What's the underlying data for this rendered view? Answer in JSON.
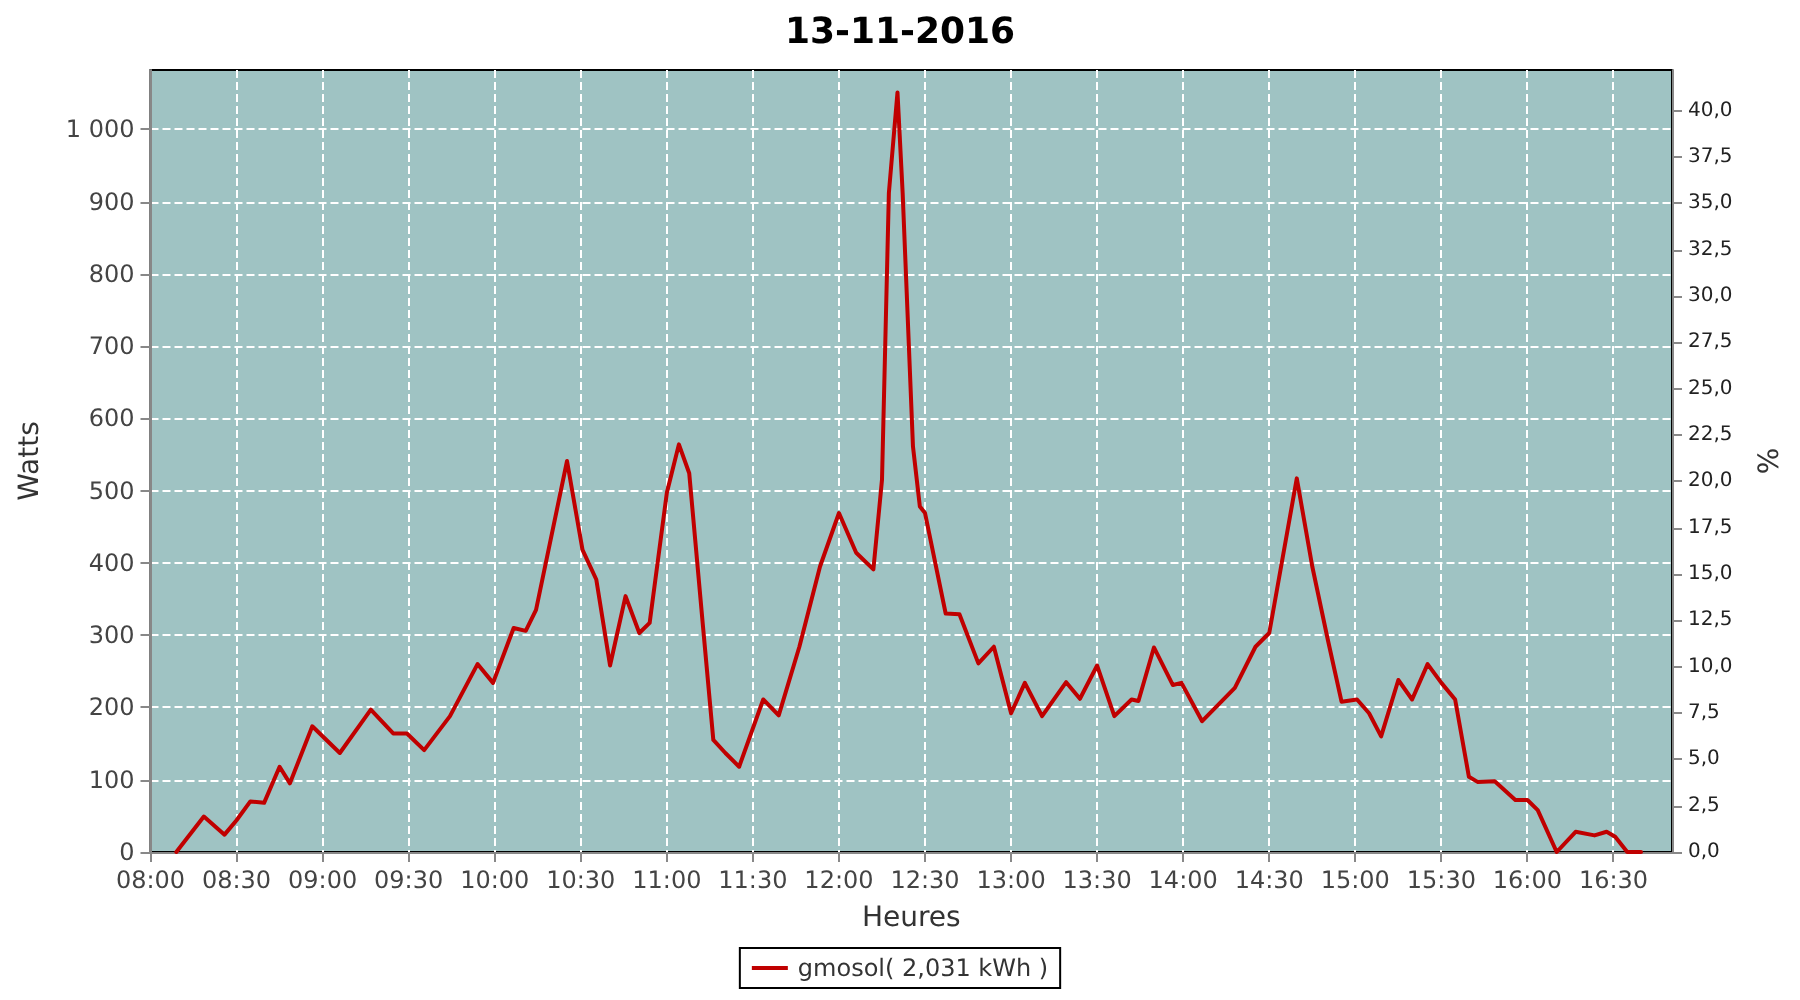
{
  "chart_data": {
    "type": "line",
    "title": "13-11-2016",
    "xlabel": "Heures",
    "ylabel": "Watts",
    "y2label": "%",
    "xlim": [
      8,
      16.84
    ],
    "xticks": [
      {
        "value": 8,
        "label": "08:00"
      },
      {
        "value": 8.5,
        "label": "08:30"
      },
      {
        "value": 9,
        "label": "09:00"
      },
      {
        "value": 9.5,
        "label": "09:30"
      },
      {
        "value": 10,
        "label": "10:00"
      },
      {
        "value": 10.5,
        "label": "10:30"
      },
      {
        "value": 11,
        "label": "11:00"
      },
      {
        "value": 11.5,
        "label": "11:30"
      },
      {
        "value": 12,
        "label": "12:00"
      },
      {
        "value": 12.5,
        "label": "12:30"
      },
      {
        "value": 13,
        "label": "13:00"
      },
      {
        "value": 13.5,
        "label": "13:30"
      },
      {
        "value": 14,
        "label": "14:00"
      },
      {
        "value": 14.5,
        "label": "14:30"
      },
      {
        "value": 15,
        "label": "15:00"
      },
      {
        "value": 15.5,
        "label": "15:30"
      },
      {
        "value": 16,
        "label": "16:00"
      },
      {
        "value": 16.5,
        "label": "16:30"
      }
    ],
    "ylim": [
      0,
      1082
    ],
    "yticks": [
      0,
      100,
      200,
      300,
      400,
      500,
      600,
      700,
      800,
      900,
      {
        "value": 1000,
        "label": "1 000"
      }
    ],
    "y2lim": [
      0,
      42.2
    ],
    "y2ticks": [
      {
        "value": 0,
        "label": "0,0"
      },
      {
        "value": 2.5,
        "label": "2,5"
      },
      {
        "value": 5,
        "label": "5,0"
      },
      {
        "value": 7.5,
        "label": "7,5"
      },
      {
        "value": 10,
        "label": "10,0"
      },
      {
        "value": 12.5,
        "label": "12,5"
      },
      {
        "value": 15,
        "label": "15,0"
      },
      {
        "value": 17.5,
        "label": "17,5"
      },
      {
        "value": 20,
        "label": "20,0"
      },
      {
        "value": 22.5,
        "label": "22,5"
      },
      {
        "value": 25,
        "label": "25,0"
      },
      {
        "value": 27.5,
        "label": "27,5"
      },
      {
        "value": 30,
        "label": "30,0"
      },
      {
        "value": 32.5,
        "label": "32,5"
      },
      {
        "value": 35,
        "label": "35,0"
      },
      {
        "value": 37.5,
        "label": "37,5"
      },
      {
        "value": 40,
        "label": "40,0"
      }
    ],
    "grid": true,
    "legend": "bottom",
    "marker": "none",
    "line_style": "solid",
    "series": [
      {
        "name": "gmosol( 2,031 kWh )",
        "color": "#c00000",
        "x": [
          8.15,
          8.31,
          8.43,
          8.5,
          8.58,
          8.66,
          8.75,
          8.81,
          8.94,
          9.1,
          9.28,
          9.41,
          9.49,
          9.59,
          9.74,
          9.9,
          9.99,
          10.11,
          10.18,
          10.24,
          10.42,
          10.51,
          10.59,
          10.67,
          10.76,
          10.84,
          10.9,
          11,
          11.07,
          11.13,
          11.21,
          11.27,
          11.34,
          11.42,
          11.56,
          11.65,
          11.77,
          11.89,
          12,
          12.1,
          12.2,
          12.25,
          12.29,
          12.34,
          12.37,
          12.43,
          12.47,
          12.5,
          12.62,
          12.7,
          12.81,
          12.9,
          13,
          13.08,
          13.18,
          13.32,
          13.4,
          13.5,
          13.6,
          13.7,
          13.74,
          13.83,
          13.94,
          13.99,
          14.11,
          14.3,
          14.42,
          14.5,
          14.66,
          14.75,
          14.84,
          14.92,
          15.01,
          15.08,
          15.15,
          15.25,
          15.33,
          15.42,
          15.5,
          15.58,
          15.66,
          15.71,
          15.81,
          15.93,
          16,
          16.06,
          16.17,
          16.28,
          16.39,
          16.46,
          16.51,
          16.58,
          16.66
        ],
        "values": [
          0,
          49,
          24,
          44,
          70,
          68,
          118,
          95,
          174,
          137,
          197,
          164,
          164,
          141,
          188,
          260,
          234,
          310,
          306,
          335,
          541,
          418,
          377,
          258,
          354,
          303,
          317,
          497,
          564,
          524,
          312,
          155,
          137,
          118,
          211,
          189,
          284,
          395,
          469,
          414,
          391,
          515,
          912,
          1051,
          912,
          561,
          478,
          469,
          330,
          329,
          261,
          284,
          192,
          234,
          188,
          235,
          212,
          258,
          188,
          211,
          209,
          283,
          231,
          234,
          181,
          227,
          284,
          303,
          517,
          395,
          294,
          208,
          211,
          192,
          160,
          238,
          211,
          260,
          234,
          211,
          104,
          97,
          98,
          72,
          72,
          58,
          0,
          28,
          23,
          28,
          21,
          0,
          0
        ]
      }
    ]
  }
}
